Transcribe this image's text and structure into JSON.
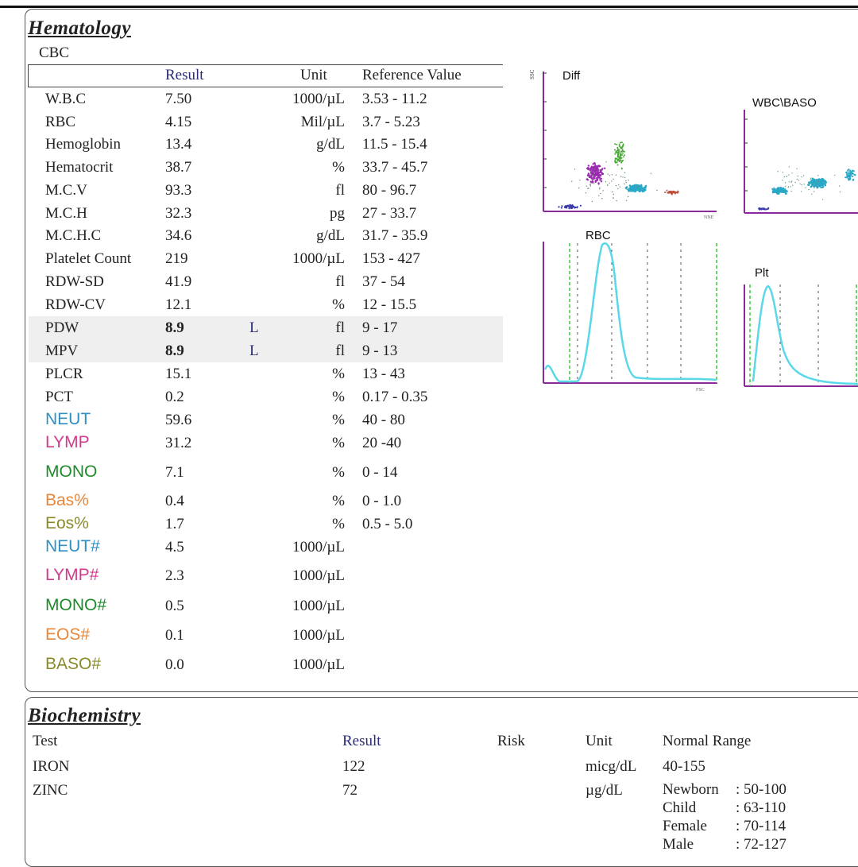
{
  "hematology": {
    "title": "Hematology",
    "subtitle": "CBC",
    "headers": {
      "result": "Result",
      "unit": "Unit",
      "reference": "Reference Value"
    },
    "rows": [
      {
        "name": "W.B.C",
        "result": "7.50",
        "flag": "",
        "unit": "1000/µL",
        "ref": "3.53 - 11.2"
      },
      {
        "name": "RBC",
        "result": "4.15",
        "flag": "",
        "unit": "Mil/µL",
        "ref": "3.7 - 5.23"
      },
      {
        "name": "Hemoglobin",
        "result": "13.4",
        "flag": "",
        "unit": "g/dL",
        "ref": "11.5 - 15.4"
      },
      {
        "name": "Hematocrit",
        "result": "38.7",
        "flag": "",
        "unit": "%",
        "ref": "33.7 - 45.7"
      },
      {
        "name": "M.C.V",
        "result": "93.3",
        "flag": "",
        "unit": "fl",
        "ref": "80 - 96.7"
      },
      {
        "name": "M.C.H",
        "result": "32.3",
        "flag": "",
        "unit": "pg",
        "ref": "27 - 33.7"
      },
      {
        "name": "M.C.H.C",
        "result": "34.6",
        "flag": "",
        "unit": "g/dL",
        "ref": "31.7 - 35.9"
      },
      {
        "name": "Platelet Count",
        "result": "219",
        "flag": "",
        "unit": "1000/µL",
        "ref": "153 - 427"
      },
      {
        "name": "RDW-SD",
        "result": "41.9",
        "flag": "",
        "unit": "fl",
        "ref": "37 - 54"
      },
      {
        "name": "RDW-CV",
        "result": "12.1",
        "flag": "",
        "unit": "%",
        "ref": "12 - 15.5"
      },
      {
        "name": "PDW",
        "result": "8.9",
        "flag": "L",
        "unit": "fl",
        "ref": "9 - 17"
      },
      {
        "name": "MPV",
        "result": "8.9",
        "flag": "L",
        "unit": "fl",
        "ref": "9 - 13"
      },
      {
        "name": "PLCR",
        "result": "15.1",
        "flag": "",
        "unit": "%",
        "ref": "13 - 43"
      },
      {
        "name": "PCT",
        "result": "0.2",
        "flag": "",
        "unit": "%",
        "ref": "0.17 - 0.35"
      },
      {
        "name": "NEUT",
        "result": "59.6",
        "flag": "",
        "unit": "%",
        "ref": "40 - 80"
      },
      {
        "name": "LYMP",
        "result": "31.2",
        "flag": "",
        "unit": "%",
        "ref": "20 -40"
      },
      {
        "name": "MONO",
        "result": "7.1",
        "flag": "",
        "unit": "%",
        "ref": "0 - 14"
      },
      {
        "name": "Bas%",
        "result": "0.4",
        "flag": "",
        "unit": "%",
        "ref": "0 - 1.0"
      },
      {
        "name": "Eos%",
        "result": "1.7",
        "flag": "",
        "unit": "%",
        "ref": "0.5 - 5.0"
      },
      {
        "name": "NEUT#",
        "result": "4.5",
        "flag": "",
        "unit": "1000/µL",
        "ref": ""
      },
      {
        "name": "LYMP#",
        "result": "2.3",
        "flag": "",
        "unit": "1000/µL",
        "ref": ""
      },
      {
        "name": "MONO#",
        "result": "0.5",
        "flag": "",
        "unit": "1000/µL",
        "ref": ""
      },
      {
        "name": "EOS#",
        "result": "0.1",
        "flag": "",
        "unit": "1000/µL",
        "ref": ""
      },
      {
        "name": "BASO#",
        "result": "0.0",
        "flag": "",
        "unit": "1000/µL",
        "ref": ""
      }
    ],
    "charts": {
      "diff": "Diff",
      "wbc_baso": "WBC\\BASO",
      "rbc": "RBC",
      "plt": "Plt"
    }
  },
  "colors": {
    "navy": "#2a2a78",
    "neut": "#2f8fc4",
    "lymp": "#d23a8c",
    "mono": "#1f8a2a",
    "bas": "#e8873a",
    "eos": "#8a8a2a",
    "purple_axis": "#8a2a9a",
    "cyan_curve": "#5ad8e8",
    "green_dash": "#3ac83a"
  },
  "biochemistry": {
    "title": "Biochemistry",
    "headers": {
      "test": "Test",
      "result": "Result",
      "risk": "Risk",
      "unit": "Unit",
      "range": "Normal Range"
    },
    "rows": [
      {
        "test": "IRON",
        "result": "122",
        "unit": "micg/dL",
        "range": "40-155"
      },
      {
        "test": "ZINC",
        "result": "72",
        "unit": "µg/dL",
        "range": ""
      }
    ],
    "zinc_ranges": [
      {
        "label": "Newborn",
        "value": ": 50-100"
      },
      {
        "label": "Child",
        "value": ": 63-110"
      },
      {
        "label": "Female",
        "value": ": 70-114"
      },
      {
        "label": "Male",
        "value": ": 72-127"
      }
    ]
  }
}
